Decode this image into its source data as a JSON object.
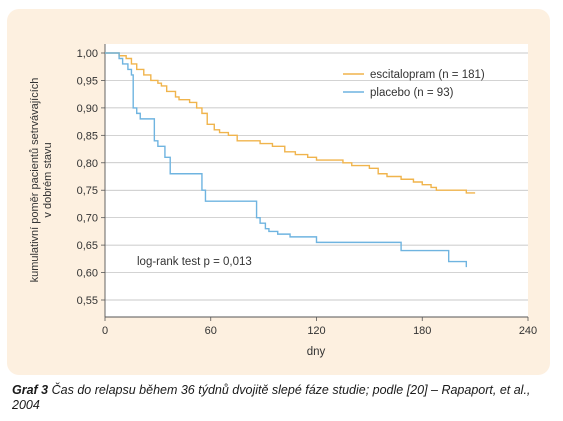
{
  "chart_data": {
    "type": "line",
    "step": true,
    "xlabel": "dny",
    "ylabel_lines": [
      "kumulativní poměr pacientů setrvávajících",
      "v dobrém stavu"
    ],
    "xlim": [
      0,
      240
    ],
    "ylim": [
      0.55,
      1.0
    ],
    "xticks": [
      0,
      60,
      120,
      180,
      240
    ],
    "xtick_labels": [
      "0",
      "60",
      "120",
      "180",
      "240"
    ],
    "yticks": [
      0.55,
      0.6,
      0.65,
      0.7,
      0.75,
      0.8,
      0.85,
      0.9,
      0.95,
      1.0
    ],
    "ytick_labels": [
      "0,55",
      "0,60",
      "0,65",
      "0,70",
      "0,75",
      "0,80",
      "0,85",
      "0,90",
      "0,95",
      "1,00"
    ],
    "grid": "horizontal",
    "legend_position": "top-right",
    "annotation": "log-rank test p = 0,013",
    "series": [
      {
        "name": "escitalopram (n = 181)",
        "color": "#f0b44c",
        "x": [
          0,
          8,
          12,
          15,
          18,
          22,
          26,
          30,
          32,
          35,
          40,
          42,
          48,
          52,
          55,
          58,
          62,
          65,
          70,
          75,
          88,
          95,
          102,
          108,
          115,
          120,
          135,
          140,
          150,
          155,
          160,
          168,
          175,
          180,
          185,
          188,
          190,
          205,
          210
        ],
        "y": [
          1.0,
          0.995,
          0.99,
          0.98,
          0.97,
          0.96,
          0.95,
          0.945,
          0.94,
          0.93,
          0.92,
          0.915,
          0.91,
          0.9,
          0.89,
          0.87,
          0.86,
          0.855,
          0.85,
          0.84,
          0.835,
          0.83,
          0.82,
          0.815,
          0.81,
          0.805,
          0.8,
          0.795,
          0.79,
          0.78,
          0.775,
          0.77,
          0.765,
          0.76,
          0.755,
          0.75,
          0.75,
          0.745,
          0.745
        ]
      },
      {
        "name": "placebo (n = 93)",
        "color": "#6fb4e0",
        "x": [
          0,
          8,
          10,
          13,
          15,
          16,
          18,
          20,
          28,
          30,
          34,
          37,
          55,
          57,
          86,
          88,
          91,
          93,
          98,
          105,
          120,
          168,
          195,
          205
        ],
        "y": [
          1.0,
          0.99,
          0.98,
          0.97,
          0.96,
          0.9,
          0.89,
          0.88,
          0.84,
          0.83,
          0.81,
          0.78,
          0.75,
          0.73,
          0.7,
          0.69,
          0.68,
          0.675,
          0.67,
          0.665,
          0.655,
          0.64,
          0.62,
          0.61
        ]
      }
    ]
  },
  "caption": {
    "lead": "Graf 3",
    "text": " Čas do relapsu během 36 týdnů dvojitě slepé fáze studie; podle [20] – Rapaport, et al., 2004"
  }
}
